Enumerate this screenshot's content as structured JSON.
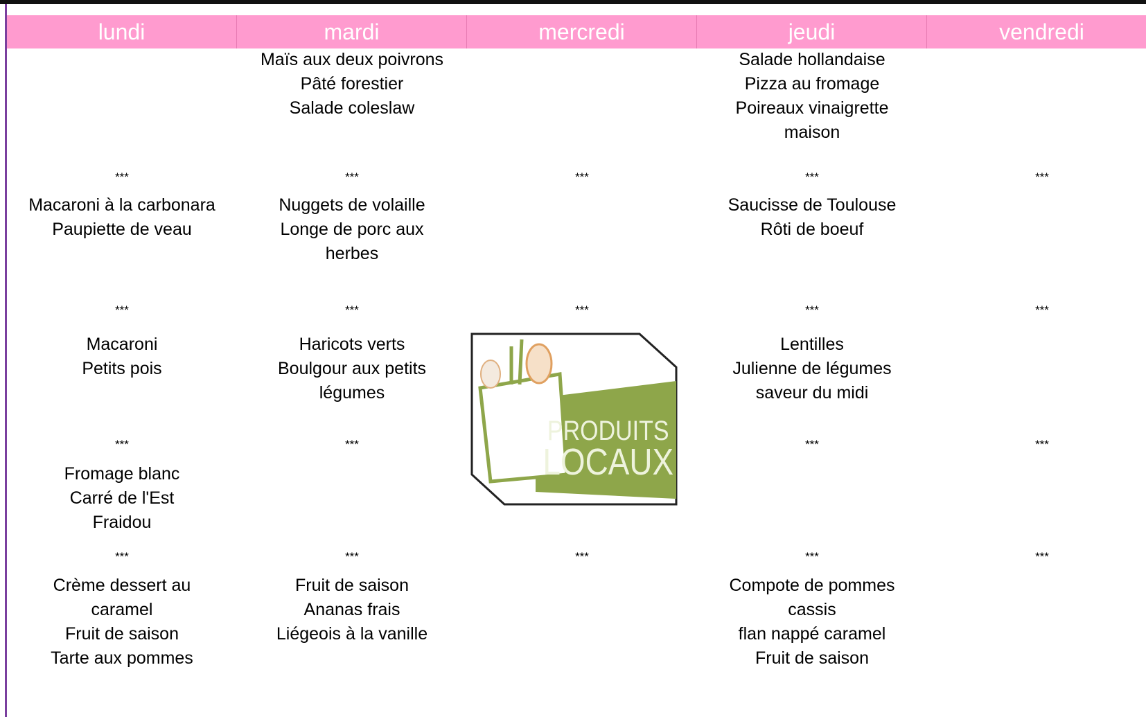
{
  "header": {
    "days": [
      "lundi",
      "mardi",
      "mercredi",
      "jeudi",
      "vendredi"
    ]
  },
  "menu": {
    "columns": [
      {
        "rows": [
          [],
          [
            "Macaroni à la carbonara",
            "Paupiette de veau"
          ],
          [
            "Macaroni",
            "Petits pois"
          ],
          [
            "Fromage blanc",
            "Carré de l'Est",
            "Fraidou"
          ],
          [
            "Crème dessert au",
            "caramel",
            "Fruit de saison",
            "Tarte aux pommes"
          ]
        ],
        "separators": [
          "***",
          "***",
          "***",
          "***"
        ]
      },
      {
        "rows": [
          [
            "Maïs aux deux poivrons",
            "Pâté forestier",
            "Salade coleslaw"
          ],
          [
            "Nuggets de volaille",
            "Longe de porc aux",
            "herbes"
          ],
          [
            "Haricots verts",
            "Boulgour aux petits",
            "légumes"
          ],
          [],
          [
            "Fruit de saison",
            "Ananas frais",
            "Liégeois à la vanille"
          ]
        ],
        "separators": [
          "***",
          "***",
          "***",
          "***"
        ]
      },
      {
        "rows": [
          [],
          [],
          [],
          [],
          []
        ],
        "separators": [
          "***",
          "***",
          null,
          "***"
        ]
      },
      {
        "rows": [
          [
            "Salade hollandaise",
            "Pizza au fromage",
            "Poireaux vinaigrette",
            "maison"
          ],
          [
            "Saucisse de Toulouse",
            "Rôti de boeuf"
          ],
          [
            "Lentilles",
            "Julienne de légumes",
            "saveur du midi"
          ],
          [],
          [
            "Compote de pommes",
            "cassis",
            "flan nappé caramel",
            "Fruit de saison"
          ]
        ],
        "separators": [
          "***",
          "***",
          "***",
          "***"
        ]
      },
      {
        "rows": [
          [],
          [],
          [],
          [],
          []
        ],
        "separators": [
          "***",
          "***",
          "***",
          "***"
        ]
      }
    ]
  },
  "logo": {
    "line1": "PRODUITS",
    "line2": "LOCAUX"
  }
}
